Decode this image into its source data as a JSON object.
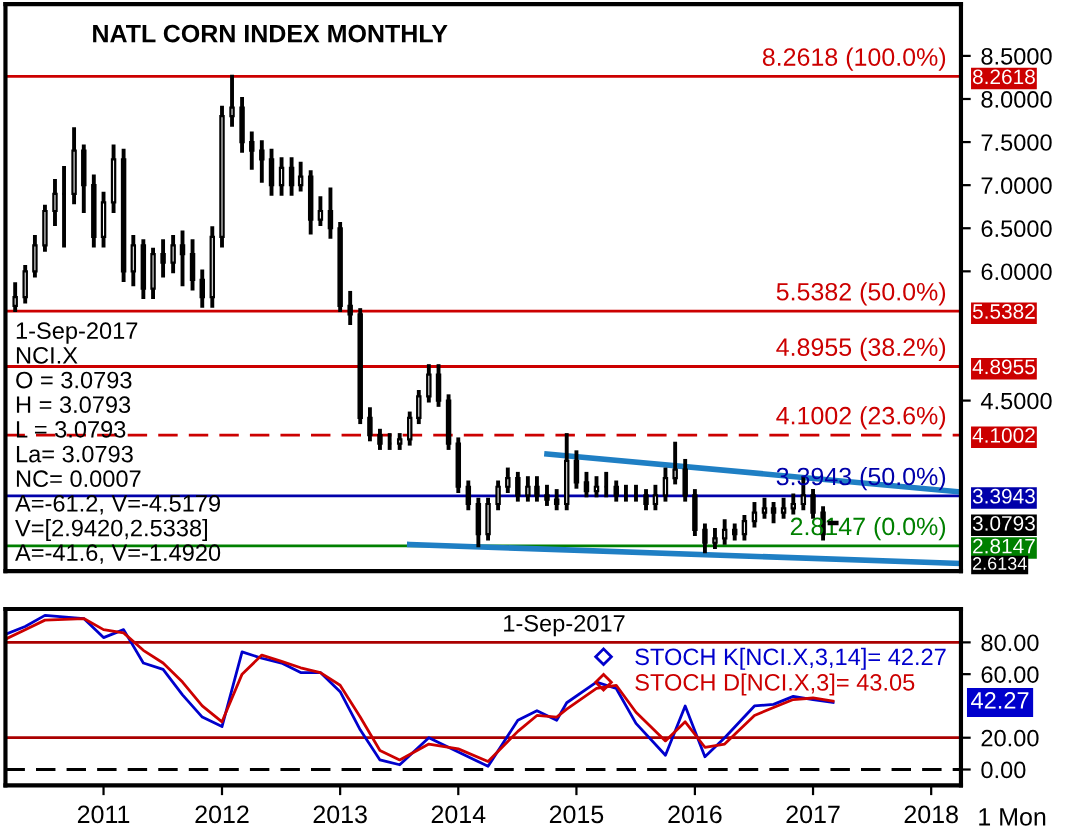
{
  "chart_data": [
    {
      "type": "candlestick",
      "title": "NATL CORN INDEX MONTHLY",
      "x": [
        "2010-10",
        "2010-11",
        "2010-12",
        "2011-01",
        "2011-02",
        "2011-03",
        "2011-04",
        "2011-05",
        "2011-06",
        "2011-07",
        "2011-08",
        "2011-09",
        "2011-10",
        "2011-11",
        "2011-12",
        "2012-01",
        "2012-02",
        "2012-03",
        "2012-04",
        "2012-05",
        "2012-06",
        "2012-07",
        "2012-08",
        "2012-09",
        "2012-10",
        "2012-11",
        "2012-12",
        "2013-01",
        "2013-02",
        "2013-03",
        "2013-04",
        "2013-05",
        "2013-06",
        "2013-07",
        "2013-08",
        "2013-09",
        "2013-10",
        "2013-11",
        "2013-12",
        "2014-01",
        "2014-02",
        "2014-03",
        "2014-04",
        "2014-05",
        "2014-06",
        "2014-07",
        "2014-08",
        "2014-09",
        "2014-10",
        "2014-11",
        "2014-12",
        "2015-01",
        "2015-02",
        "2015-03",
        "2015-04",
        "2015-05",
        "2015-06",
        "2015-07",
        "2015-08",
        "2015-09",
        "2015-10",
        "2015-11",
        "2015-12",
        "2016-01",
        "2016-02",
        "2016-03",
        "2016-04",
        "2016-05",
        "2016-06",
        "2016-07",
        "2016-08",
        "2016-09",
        "2016-10",
        "2016-11",
        "2016-12",
        "2017-01",
        "2017-02",
        "2017-03",
        "2017-04",
        "2017-05",
        "2017-06",
        "2017-07",
        "2017-08",
        "2017-09"
      ],
      "ohlc": [
        [
          5.6,
          5.85,
          5.55,
          5.7
        ],
        [
          5.7,
          6.05,
          5.65,
          6.0
        ],
        [
          6.0,
          6.4,
          5.95,
          6.3
        ],
        [
          6.3,
          6.75,
          6.25,
          6.7
        ],
        [
          6.7,
          7.05,
          6.55,
          6.9
        ],
        [
          6.9,
          7.2,
          6.3,
          6.9
        ],
        [
          6.9,
          7.65,
          6.8,
          7.4
        ],
        [
          7.4,
          7.45,
          6.7,
          7.0
        ],
        [
          7.0,
          7.1,
          6.3,
          6.4
        ],
        [
          6.4,
          6.9,
          6.3,
          6.8
        ],
        [
          6.8,
          7.45,
          6.7,
          7.3
        ],
        [
          7.3,
          7.4,
          5.9,
          6.0
        ],
        [
          6.0,
          6.4,
          5.85,
          6.3
        ],
        [
          6.3,
          6.35,
          5.7,
          5.8
        ],
        [
          5.8,
          6.25,
          5.7,
          6.2
        ],
        [
          6.2,
          6.35,
          5.95,
          6.1
        ],
        [
          6.1,
          6.4,
          6.0,
          6.3
        ],
        [
          6.3,
          6.45,
          5.85,
          6.2
        ],
        [
          6.2,
          6.35,
          5.8,
          5.9
        ],
        [
          5.9,
          6.0,
          5.6,
          5.7
        ],
        [
          5.7,
          6.5,
          5.6,
          6.4
        ],
        [
          6.4,
          7.9,
          6.3,
          7.8
        ],
        [
          7.8,
          8.26,
          7.7,
          7.9
        ],
        [
          7.9,
          8.0,
          7.4,
          7.5
        ],
        [
          7.5,
          7.6,
          7.2,
          7.4
        ],
        [
          7.4,
          7.5,
          7.05,
          7.3
        ],
        [
          7.3,
          7.4,
          6.9,
          7.0
        ],
        [
          7.0,
          7.3,
          6.9,
          7.2
        ],
        [
          7.2,
          7.3,
          6.9,
          7.0
        ],
        [
          7.0,
          7.25,
          6.95,
          7.1
        ],
        [
          7.1,
          7.15,
          6.45,
          6.6
        ],
        [
          6.6,
          6.85,
          6.55,
          6.7
        ],
        [
          6.7,
          6.95,
          6.4,
          6.5
        ],
        [
          6.5,
          6.55,
          5.55,
          5.6
        ],
        [
          5.6,
          5.75,
          5.4,
          5.5
        ],
        [
          5.5,
          5.55,
          4.25,
          4.3
        ],
        [
          4.3,
          4.4,
          4.05,
          4.1
        ],
        [
          4.1,
          4.15,
          3.95,
          4.0
        ],
        [
          4.0,
          4.1,
          3.95,
          4.0
        ],
        [
          4.0,
          4.1,
          3.95,
          4.05
        ],
        [
          4.05,
          4.35,
          4.0,
          4.3
        ],
        [
          4.3,
          4.6,
          4.25,
          4.55
        ],
        [
          4.55,
          4.9,
          4.5,
          4.8
        ],
        [
          4.8,
          4.9,
          4.45,
          4.5
        ],
        [
          4.5,
          4.55,
          3.95,
          4.0
        ],
        [
          4.0,
          4.05,
          3.45,
          3.5
        ],
        [
          3.5,
          3.55,
          3.25,
          3.3
        ],
        [
          3.3,
          3.35,
          2.82,
          2.95
        ],
        [
          2.95,
          3.35,
          2.9,
          3.3
        ],
        [
          3.3,
          3.55,
          3.25,
          3.5
        ],
        [
          3.5,
          3.7,
          3.45,
          3.6
        ],
        [
          3.6,
          3.65,
          3.35,
          3.4
        ],
        [
          3.4,
          3.6,
          3.35,
          3.5
        ],
        [
          3.5,
          3.6,
          3.35,
          3.4
        ],
        [
          3.4,
          3.5,
          3.3,
          3.35
        ],
        [
          3.35,
          3.45,
          3.25,
          3.3
        ],
        [
          3.3,
          4.1,
          3.25,
          3.8
        ],
        [
          3.8,
          3.9,
          3.5,
          3.55
        ],
        [
          3.55,
          3.65,
          3.4,
          3.45
        ],
        [
          3.45,
          3.6,
          3.4,
          3.5
        ],
        [
          3.5,
          3.65,
          3.4,
          3.5
        ],
        [
          3.5,
          3.55,
          3.35,
          3.4
        ],
        [
          3.4,
          3.5,
          3.35,
          3.4
        ],
        [
          3.4,
          3.5,
          3.35,
          3.4
        ],
        [
          3.4,
          3.45,
          3.25,
          3.3
        ],
        [
          3.3,
          3.5,
          3.25,
          3.4
        ],
        [
          3.4,
          3.7,
          3.35,
          3.6
        ],
        [
          3.6,
          4.0,
          3.55,
          3.7
        ],
        [
          3.7,
          3.8,
          3.35,
          3.4
        ],
        [
          3.4,
          3.45,
          2.95,
          3.0
        ],
        [
          3.0,
          3.05,
          2.75,
          2.85
        ],
        [
          2.85,
          3.0,
          2.8,
          2.9
        ],
        [
          2.9,
          3.1,
          2.85,
          3.0
        ],
        [
          3.0,
          3.05,
          2.9,
          2.95
        ],
        [
          2.95,
          3.15,
          2.9,
          3.1
        ],
        [
          3.1,
          3.3,
          3.05,
          3.2
        ],
        [
          3.2,
          3.35,
          3.15,
          3.25
        ],
        [
          3.25,
          3.3,
          3.1,
          3.2
        ],
        [
          3.2,
          3.35,
          3.15,
          3.25
        ],
        [
          3.25,
          3.4,
          3.2,
          3.3
        ],
        [
          3.3,
          3.6,
          3.25,
          3.4
        ],
        [
          3.4,
          3.45,
          3.15,
          3.2
        ],
        [
          3.2,
          3.25,
          2.9,
          2.95
        ],
        [
          3.0793,
          3.0793,
          3.0793,
          3.0793
        ]
      ],
      "series": [
        {
          "type": "line",
          "color": "#1f7fc4",
          "x": [
            "2015-04",
            "2018-10"
          ],
          "values": [
            3.88,
            3.44
          ]
        },
        {
          "type": "line",
          "color": "#1f7fc4",
          "x": [
            "2014-02",
            "2018-10"
          ],
          "values": [
            2.83,
            2.61
          ]
        }
      ],
      "xlim": [
        "2010-09",
        "2018-10"
      ],
      "ylim": [
        2.52,
        9.1
      ],
      "y2lim": [
        2.52,
        9.1
      ],
      "y2ticks": [
        {
          "value": 8.2618,
          "label": "8.2618"
        },
        {
          "value": 5.5382,
          "label": "5.5382"
        },
        {
          "value": 4.8955,
          "label": "4.8955"
        },
        {
          "value": 4.1002,
          "label": "4.1002"
        },
        {
          "value": 3.3943,
          "label": "3.3943"
        },
        {
          "value": 3.0793,
          "label": "3.0793"
        },
        {
          "value": 2.8147,
          "label": "2.8147"
        },
        {
          "value": 2.6134,
          "label": "2.6134"
        }
      ],
      "yticks": [
        {
          "value": 4.5,
          "label": "4.5000"
        },
        {
          "value": 6.0,
          "label": "6.0000"
        },
        {
          "value": 6.5,
          "label": "6.5000"
        },
        {
          "value": 7.0,
          "label": "7.0000"
        },
        {
          "value": 7.5,
          "label": "7.5000"
        },
        {
          "value": 8.0,
          "label": "8.0000"
        },
        {
          "value": 8.5,
          "label": "8.5000"
        }
      ],
      "tick_labels": "y",
      "grid": false,
      "ref_lines": [
        {
          "axis": "y",
          "value": 8.2618,
          "label": "8.2618 (100.0%)",
          "color": "#cc0000",
          "line_style": "solid"
        },
        {
          "axis": "y",
          "value": 5.5382,
          "label": "5.5382 (50.0%)",
          "color": "#cc0000",
          "line_style": "solid"
        },
        {
          "axis": "y",
          "value": 4.8955,
          "label": "4.8955 (38.2%)",
          "color": "#cc0000",
          "line_style": "solid"
        },
        {
          "axis": "y",
          "value": 4.1002,
          "label": "4.1002 (23.6%)",
          "color": "#cc0000",
          "line_style": "dashed"
        },
        {
          "axis": "y",
          "value": 3.3943,
          "label": "3.3943 (50.0%)",
          "color": "#0000aa",
          "line_style": "solid"
        },
        {
          "axis": "y",
          "value": 2.8147,
          "label": "2.8147 (0.0%)",
          "color": "#008000",
          "line_style": "solid"
        }
      ],
      "annotations": [
        "1-Sep-2017",
        "NCI.X",
        "O = 3.0793",
        "H = 3.0793",
        "L = 3.0793",
        "La= 3.0793",
        "NC= 0.0007",
        "A=-61.2, V=-4.5179",
        "V=[2.9420,2.5338]",
        "A=-41.6, V=-1.4920"
      ]
    },
    {
      "type": "line",
      "series": [
        {
          "name": "STOCH K[NCI.X,3,14]= 42.27",
          "color": "#0000cc",
          "x": [
            "2010-09",
            "2010-11",
            "2011-01",
            "2011-05",
            "2011-07",
            "2011-09",
            "2011-11",
            "2012-01",
            "2012-03",
            "2012-05",
            "2012-07",
            "2012-09",
            "2012-11",
            "2013-01",
            "2013-03",
            "2013-05",
            "2013-07",
            "2013-09",
            "2013-11",
            "2014-01",
            "2014-04",
            "2014-07",
            "2014-10",
            "2015-01",
            "2015-03",
            "2015-05",
            "2015-06",
            "2015-09",
            "2015-11",
            "2016-01",
            "2016-04",
            "2016-06",
            "2016-08",
            "2016-10",
            "2017-01",
            "2017-03",
            "2017-05",
            "2017-07",
            "2017-09"
          ],
          "values": [
            85,
            90,
            97,
            95,
            83,
            88,
            67,
            63,
            47,
            33,
            27,
            74,
            70,
            67,
            61,
            61,
            49,
            25,
            6,
            3,
            20,
            11,
            2,
            31,
            37,
            31,
            42,
            55,
            51,
            29,
            9,
            40,
            8,
            20,
            40,
            41,
            46,
            44,
            42.27
          ]
        },
        {
          "name": "STOCH D[NCI.X,3]= 43.05",
          "color": "#cc0000",
          "x": [
            "2010-09",
            "2010-11",
            "2011-01",
            "2011-05",
            "2011-07",
            "2011-09",
            "2011-11",
            "2012-01",
            "2012-03",
            "2012-05",
            "2012-07",
            "2012-09",
            "2012-11",
            "2013-01",
            "2013-03",
            "2013-05",
            "2013-07",
            "2013-09",
            "2013-11",
            "2014-01",
            "2014-04",
            "2014-07",
            "2014-10",
            "2015-01",
            "2015-03",
            "2015-05",
            "2015-06",
            "2015-09",
            "2015-11",
            "2016-01",
            "2016-04",
            "2016-06",
            "2016-08",
            "2016-10",
            "2017-01",
            "2017-03",
            "2017-05",
            "2017-07",
            "2017-09"
          ],
          "values": [
            82,
            88,
            94,
            95,
            88,
            86,
            75,
            67,
            55,
            40,
            30,
            60,
            72,
            68,
            64,
            61,
            53,
            33,
            12,
            6,
            16,
            13,
            5,
            24,
            34,
            33,
            38,
            51,
            53,
            36,
            18,
            30,
            14,
            16,
            34,
            39,
            44,
            45,
            43.05
          ]
        }
      ],
      "xlim": [
        "2010-09",
        "2018-10"
      ],
      "xticks": [
        {
          "value": "2011-07",
          "label": "2011"
        },
        {
          "value": "2012-07",
          "label": "2012"
        },
        {
          "value": "2013-07",
          "label": "2013"
        },
        {
          "value": "2014-07",
          "label": "2014"
        },
        {
          "value": "2015-07",
          "label": "2015"
        },
        {
          "value": "2016-07",
          "label": "2016"
        },
        {
          "value": "2017-07",
          "label": "2017"
        },
        {
          "value": "2018-07",
          "label": "2018"
        }
      ],
      "ylim": [
        -10,
        101
      ],
      "yticks": [
        {
          "value": 0,
          "label": "0.00"
        },
        {
          "value": 20,
          "label": "20.00"
        },
        {
          "value": 60,
          "label": "60.00"
        },
        {
          "value": 80,
          "label": "80.00"
        }
      ],
      "grid": false,
      "legend": "top right",
      "marker": "none",
      "line_style": "solid",
      "ref_lines": [
        {
          "axis": "y",
          "value": 80,
          "color": "#aa0000",
          "line_style": "solid"
        },
        {
          "axis": "y",
          "value": 20,
          "color": "#aa0000",
          "line_style": "solid"
        },
        {
          "axis": "y",
          "value": 0,
          "color": "#000000",
          "line_style": "dashed"
        }
      ],
      "annotations": [
        "1-Sep-2017",
        "1 Mon",
        "42.27"
      ]
    }
  ]
}
